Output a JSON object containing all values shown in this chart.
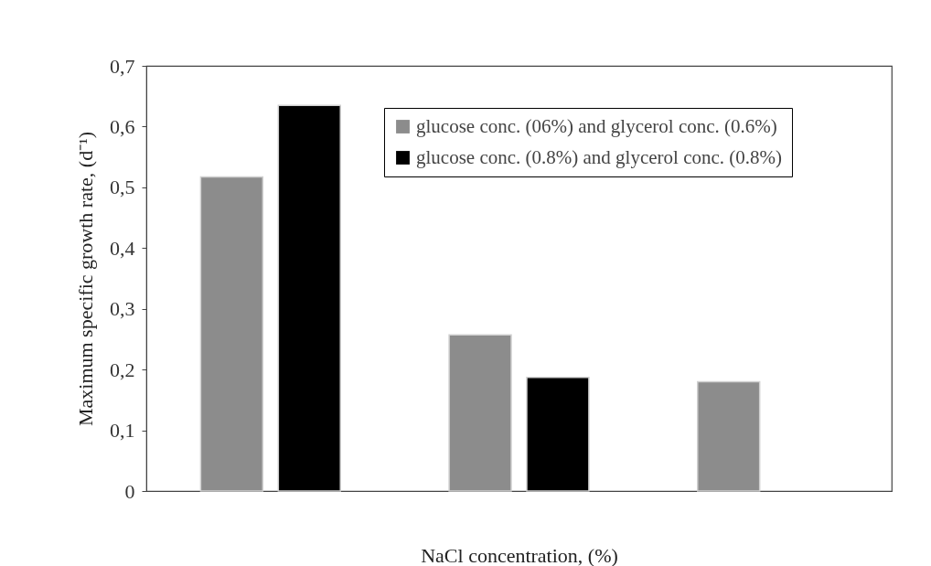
{
  "chart_data": {
    "type": "bar",
    "xlabel": "NaCl concentration, (%)",
    "ylabel": "Maximum specific growth rate, (d⁻¹)",
    "categories": [
      null,
      null,
      null
    ],
    "series": [
      {
        "name": "glucose conc. (06%) and glycerol conc. (0.6%)",
        "color": "#8c8c8c",
        "values": [
          0.517,
          0.257,
          0.18
        ]
      },
      {
        "name": "glucose conc. (0.8%) and glycerol conc. (0.8%)",
        "color": "#000000",
        "values": [
          0.635,
          0.187,
          null
        ]
      }
    ],
    "ylim": [
      0,
      0.7
    ],
    "yticks": [
      {
        "value": 0,
        "label": "0"
      },
      {
        "value": 0.1,
        "label": "0,1"
      },
      {
        "value": 0.2,
        "label": "0,2"
      },
      {
        "value": 0.3,
        "label": "0,3"
      },
      {
        "value": 0.4,
        "label": "0,4"
      },
      {
        "value": 0.5,
        "label": "0,5"
      },
      {
        "value": 0.6,
        "label": "0,6"
      },
      {
        "value": 0.7,
        "label": "0,7"
      }
    ],
    "grid": false,
    "legend": "top right"
  }
}
